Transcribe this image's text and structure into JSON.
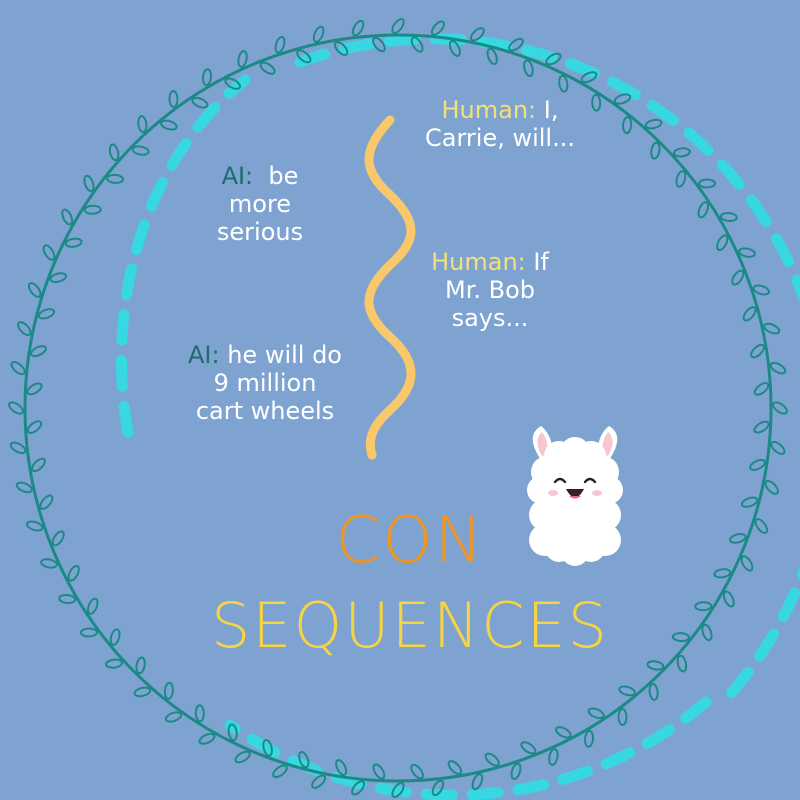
{
  "colors": {
    "background": "#7fa3d1",
    "vine": "#1b8a86",
    "dashed_ring": "#38d8e3",
    "squiggle": "#f9c86a",
    "human_label": "#f4e07a",
    "ai_label": "#1e6c6c",
    "title_con": "#f2951e",
    "title_sequences": "#f7d440",
    "text": "#ffffff"
  },
  "dialogue": {
    "human_1": {
      "speaker": "Human:",
      "line1_rest": " I,",
      "line2": "Carrie, will..."
    },
    "ai_1": {
      "speaker": "AI:",
      "line1_rest": "  be",
      "line2": "more",
      "line3": "serious"
    },
    "human_2": {
      "speaker": "Human:",
      "line1_rest": " If",
      "line2": "Mr. Bob",
      "line3": "says..."
    },
    "ai_2": {
      "speaker": "AI:",
      "line1_rest": " he will do",
      "line2": "9 million",
      "line3": "cart wheels"
    }
  },
  "title": {
    "part1": "CON",
    "part2": "SEQUENCES"
  },
  "icons": {
    "mascot": "llama-icon",
    "frame": "vine-wreath-icon"
  }
}
